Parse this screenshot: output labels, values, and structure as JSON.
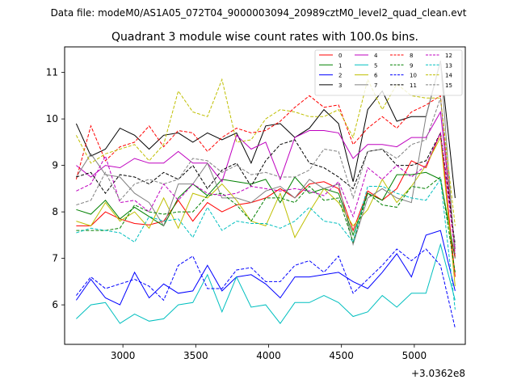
{
  "suptitle": "Data file: modeM0/AS1A05_072T04_9000003094_20989cztM0_level2_quad_clean.evt",
  "chart_data": {
    "type": "line",
    "title": "Quadrant 3 module wise count rates with 100.0s bins.",
    "xlabel": "",
    "ylabel": "",
    "x_offset_label": "+3.0362e8",
    "xlim": [
      2600,
      5350
    ],
    "ylim": [
      5.15,
      11.55
    ],
    "xticks": [
      3000,
      3500,
      4000,
      4500,
      5000
    ],
    "xtick_labels": [
      "3000",
      "3500",
      "4000",
      "4500",
      "5000"
    ],
    "yticks": [
      6,
      7,
      8,
      9,
      10,
      11
    ],
    "ytick_labels": [
      "6",
      "7",
      "8",
      "9",
      "10",
      "11"
    ],
    "legend_loc": "upper-right",
    "x": [
      2680,
      2780,
      2880,
      2980,
      3080,
      3180,
      3280,
      3380,
      3480,
      3580,
      3680,
      3780,
      3880,
      3980,
      4080,
      4180,
      4280,
      4380,
      4480,
      4580,
      4680,
      4780,
      4880,
      4980,
      5080,
      5180,
      5280
    ],
    "series": [
      {
        "name": "0",
        "color": "#ff0000",
        "dash": "solid",
        "values": [
          7.7,
          7.7,
          8.0,
          7.85,
          7.75,
          7.72,
          7.8,
          8.25,
          7.8,
          8.2,
          8.0,
          8.15,
          8.2,
          8.3,
          8.5,
          8.3,
          8.6,
          8.65,
          8.5,
          7.6,
          8.45,
          8.25,
          8.5,
          9.1,
          8.95,
          9.7,
          6.6
        ]
      },
      {
        "name": "1",
        "color": "#008000",
        "dash": "solid",
        "values": [
          8.05,
          7.95,
          8.25,
          7.85,
          8.1,
          7.9,
          7.7,
          8.3,
          8.6,
          8.35,
          8.7,
          8.65,
          8.6,
          8.7,
          8.2,
          8.75,
          8.4,
          8.5,
          8.4,
          7.5,
          8.4,
          8.25,
          8.8,
          8.8,
          8.85,
          8.7,
          7.0
        ]
      },
      {
        "name": "2",
        "color": "#0000ff",
        "dash": "solid",
        "values": [
          6.1,
          6.55,
          6.15,
          6.0,
          6.7,
          6.15,
          6.45,
          6.25,
          6.3,
          6.85,
          6.3,
          6.6,
          6.65,
          6.45,
          6.15,
          6.6,
          6.6,
          6.65,
          6.7,
          6.5,
          6.35,
          6.7,
          7.1,
          6.6,
          7.5,
          7.6,
          6.3
        ]
      },
      {
        "name": "3",
        "color": "#000000",
        "dash": "solid",
        "values": [
          9.9,
          9.2,
          9.35,
          9.8,
          9.65,
          9.35,
          9.65,
          9.7,
          9.5,
          9.7,
          9.55,
          9.7,
          9.05,
          9.85,
          9.9,
          9.6,
          9.8,
          10.2,
          9.9,
          8.65,
          10.2,
          10.6,
          9.95,
          10.05,
          10.05,
          11.25,
          8.3
        ]
      },
      {
        "name": "4",
        "color": "#bf00bf",
        "dash": "solid",
        "values": [
          9.0,
          8.75,
          9.0,
          8.95,
          9.15,
          9.05,
          9.05,
          9.3,
          9.05,
          9.05,
          8.65,
          9.65,
          9.35,
          9.5,
          8.7,
          9.6,
          9.75,
          9.75,
          9.7,
          9.15,
          9.45,
          9.45,
          9.4,
          9.6,
          9.6,
          10.15,
          7.2
        ]
      },
      {
        "name": "5",
        "color": "#00bfbf",
        "dash": "solid",
        "values": [
          5.7,
          6.0,
          6.05,
          5.6,
          5.8,
          5.65,
          5.7,
          6.0,
          6.05,
          6.65,
          5.85,
          6.6,
          5.95,
          6.0,
          5.6,
          6.05,
          6.05,
          6.2,
          6.05,
          5.75,
          5.85,
          6.2,
          5.95,
          6.25,
          6.25,
          7.3,
          6.1
        ]
      },
      {
        "name": "6",
        "color": "#bfbf00",
        "dash": "solid",
        "values": [
          7.8,
          7.7,
          8.2,
          7.8,
          8.0,
          7.65,
          8.3,
          7.65,
          8.4,
          8.3,
          8.6,
          8.25,
          7.8,
          7.7,
          8.4,
          7.45,
          8.0,
          8.5,
          8.2,
          7.7,
          8.05,
          8.7,
          8.2,
          8.55,
          9.0,
          9.6,
          6.4
        ]
      },
      {
        "name": "7",
        "color": "#808080",
        "dash": "solid",
        "values": [
          8.75,
          9.25,
          8.8,
          8.75,
          8.4,
          8.2,
          7.7,
          8.6,
          8.6,
          9.05,
          8.3,
          8.3,
          8.2,
          8.45,
          8.55,
          8.3,
          8.7,
          8.5,
          8.6,
          7.3,
          8.3,
          8.5,
          8.3,
          8.2,
          10.05,
          11.25,
          7.0
        ]
      },
      {
        "name": "8",
        "color": "#ff0000",
        "dash": "dashed",
        "values": [
          8.7,
          9.85,
          9.1,
          9.4,
          9.5,
          9.85,
          9.4,
          9.75,
          9.7,
          9.3,
          9.6,
          9.8,
          9.7,
          9.75,
          9.95,
          10.25,
          10.5,
          10.25,
          10.3,
          9.45,
          9.8,
          10.05,
          9.8,
          10.15,
          10.3,
          10.5,
          7.0
        ]
      },
      {
        "name": "9",
        "color": "#008000",
        "dash": "dashed",
        "values": [
          7.6,
          7.6,
          7.6,
          7.65,
          8.15,
          8.0,
          7.95,
          8.0,
          8.0,
          8.35,
          8.4,
          8.15,
          7.8,
          8.3,
          8.3,
          8.2,
          8.55,
          8.25,
          8.3,
          7.35,
          8.4,
          8.15,
          8.1,
          8.55,
          8.5,
          8.75,
          6.7
        ]
      },
      {
        "name": "10",
        "color": "#0000ff",
        "dash": "dashed",
        "values": [
          6.2,
          6.6,
          6.35,
          6.45,
          6.55,
          6.4,
          6.1,
          6.85,
          7.05,
          6.35,
          6.35,
          6.75,
          6.8,
          6.5,
          6.5,
          6.85,
          6.95,
          6.7,
          7.05,
          6.25,
          6.55,
          6.85,
          7.2,
          6.95,
          7.2,
          6.85,
          5.5
        ]
      },
      {
        "name": "11",
        "color": "#000000",
        "dash": "dashed",
        "values": [
          8.75,
          8.85,
          8.4,
          8.8,
          8.75,
          8.6,
          8.85,
          8.7,
          9.0,
          8.5,
          8.9,
          9.05,
          8.55,
          9.1,
          9.45,
          9.55,
          9.05,
          8.95,
          8.75,
          8.5,
          9.3,
          9.35,
          9.0,
          9.0,
          9.1,
          9.7,
          7.3
        ]
      },
      {
        "name": "12",
        "color": "#bf00bf",
        "dash": "dashed",
        "values": [
          8.45,
          8.6,
          9.2,
          8.2,
          8.25,
          8.0,
          8.6,
          8.25,
          8.6,
          8.4,
          8.35,
          8.4,
          8.55,
          8.5,
          8.45,
          8.5,
          8.45,
          8.35,
          8.65,
          7.9,
          8.95,
          8.7,
          9.0,
          8.75,
          9.0,
          9.7,
          7.1
        ]
      },
      {
        "name": "13",
        "color": "#00bfbf",
        "dash": "dashed",
        "values": [
          7.55,
          7.65,
          7.6,
          7.55,
          7.35,
          7.9,
          7.8,
          7.85,
          7.45,
          8.1,
          7.6,
          7.8,
          7.75,
          7.75,
          7.65,
          7.8,
          8.1,
          7.8,
          7.75,
          7.35,
          8.55,
          8.55,
          8.4,
          8.3,
          8.25,
          8.7,
          5.9
        ]
      },
      {
        "name": "14",
        "color": "#bfbf00",
        "dash": "dashed",
        "values": [
          9.65,
          9.05,
          9.25,
          9.35,
          9.45,
          9.1,
          9.45,
          10.6,
          10.15,
          10.05,
          10.85,
          9.5,
          9.55,
          10.0,
          10.2,
          10.15,
          10.05,
          10.05,
          10.2,
          9.6,
          10.85,
          10.2,
          10.75,
          10.5,
          10.45,
          10.45,
          7.7
        ]
      },
      {
        "name": "15",
        "color": "#808080",
        "dash": "dashed",
        "values": [
          8.15,
          8.25,
          8.85,
          8.25,
          8.6,
          8.7,
          8.6,
          8.7,
          9.15,
          9.1,
          8.85,
          9.0,
          8.8,
          8.85,
          8.75,
          8.75,
          8.9,
          9.35,
          9.3,
          8.3,
          9.3,
          9.35,
          9.15,
          9.45,
          9.55,
          10.45,
          7.2
        ]
      }
    ]
  }
}
